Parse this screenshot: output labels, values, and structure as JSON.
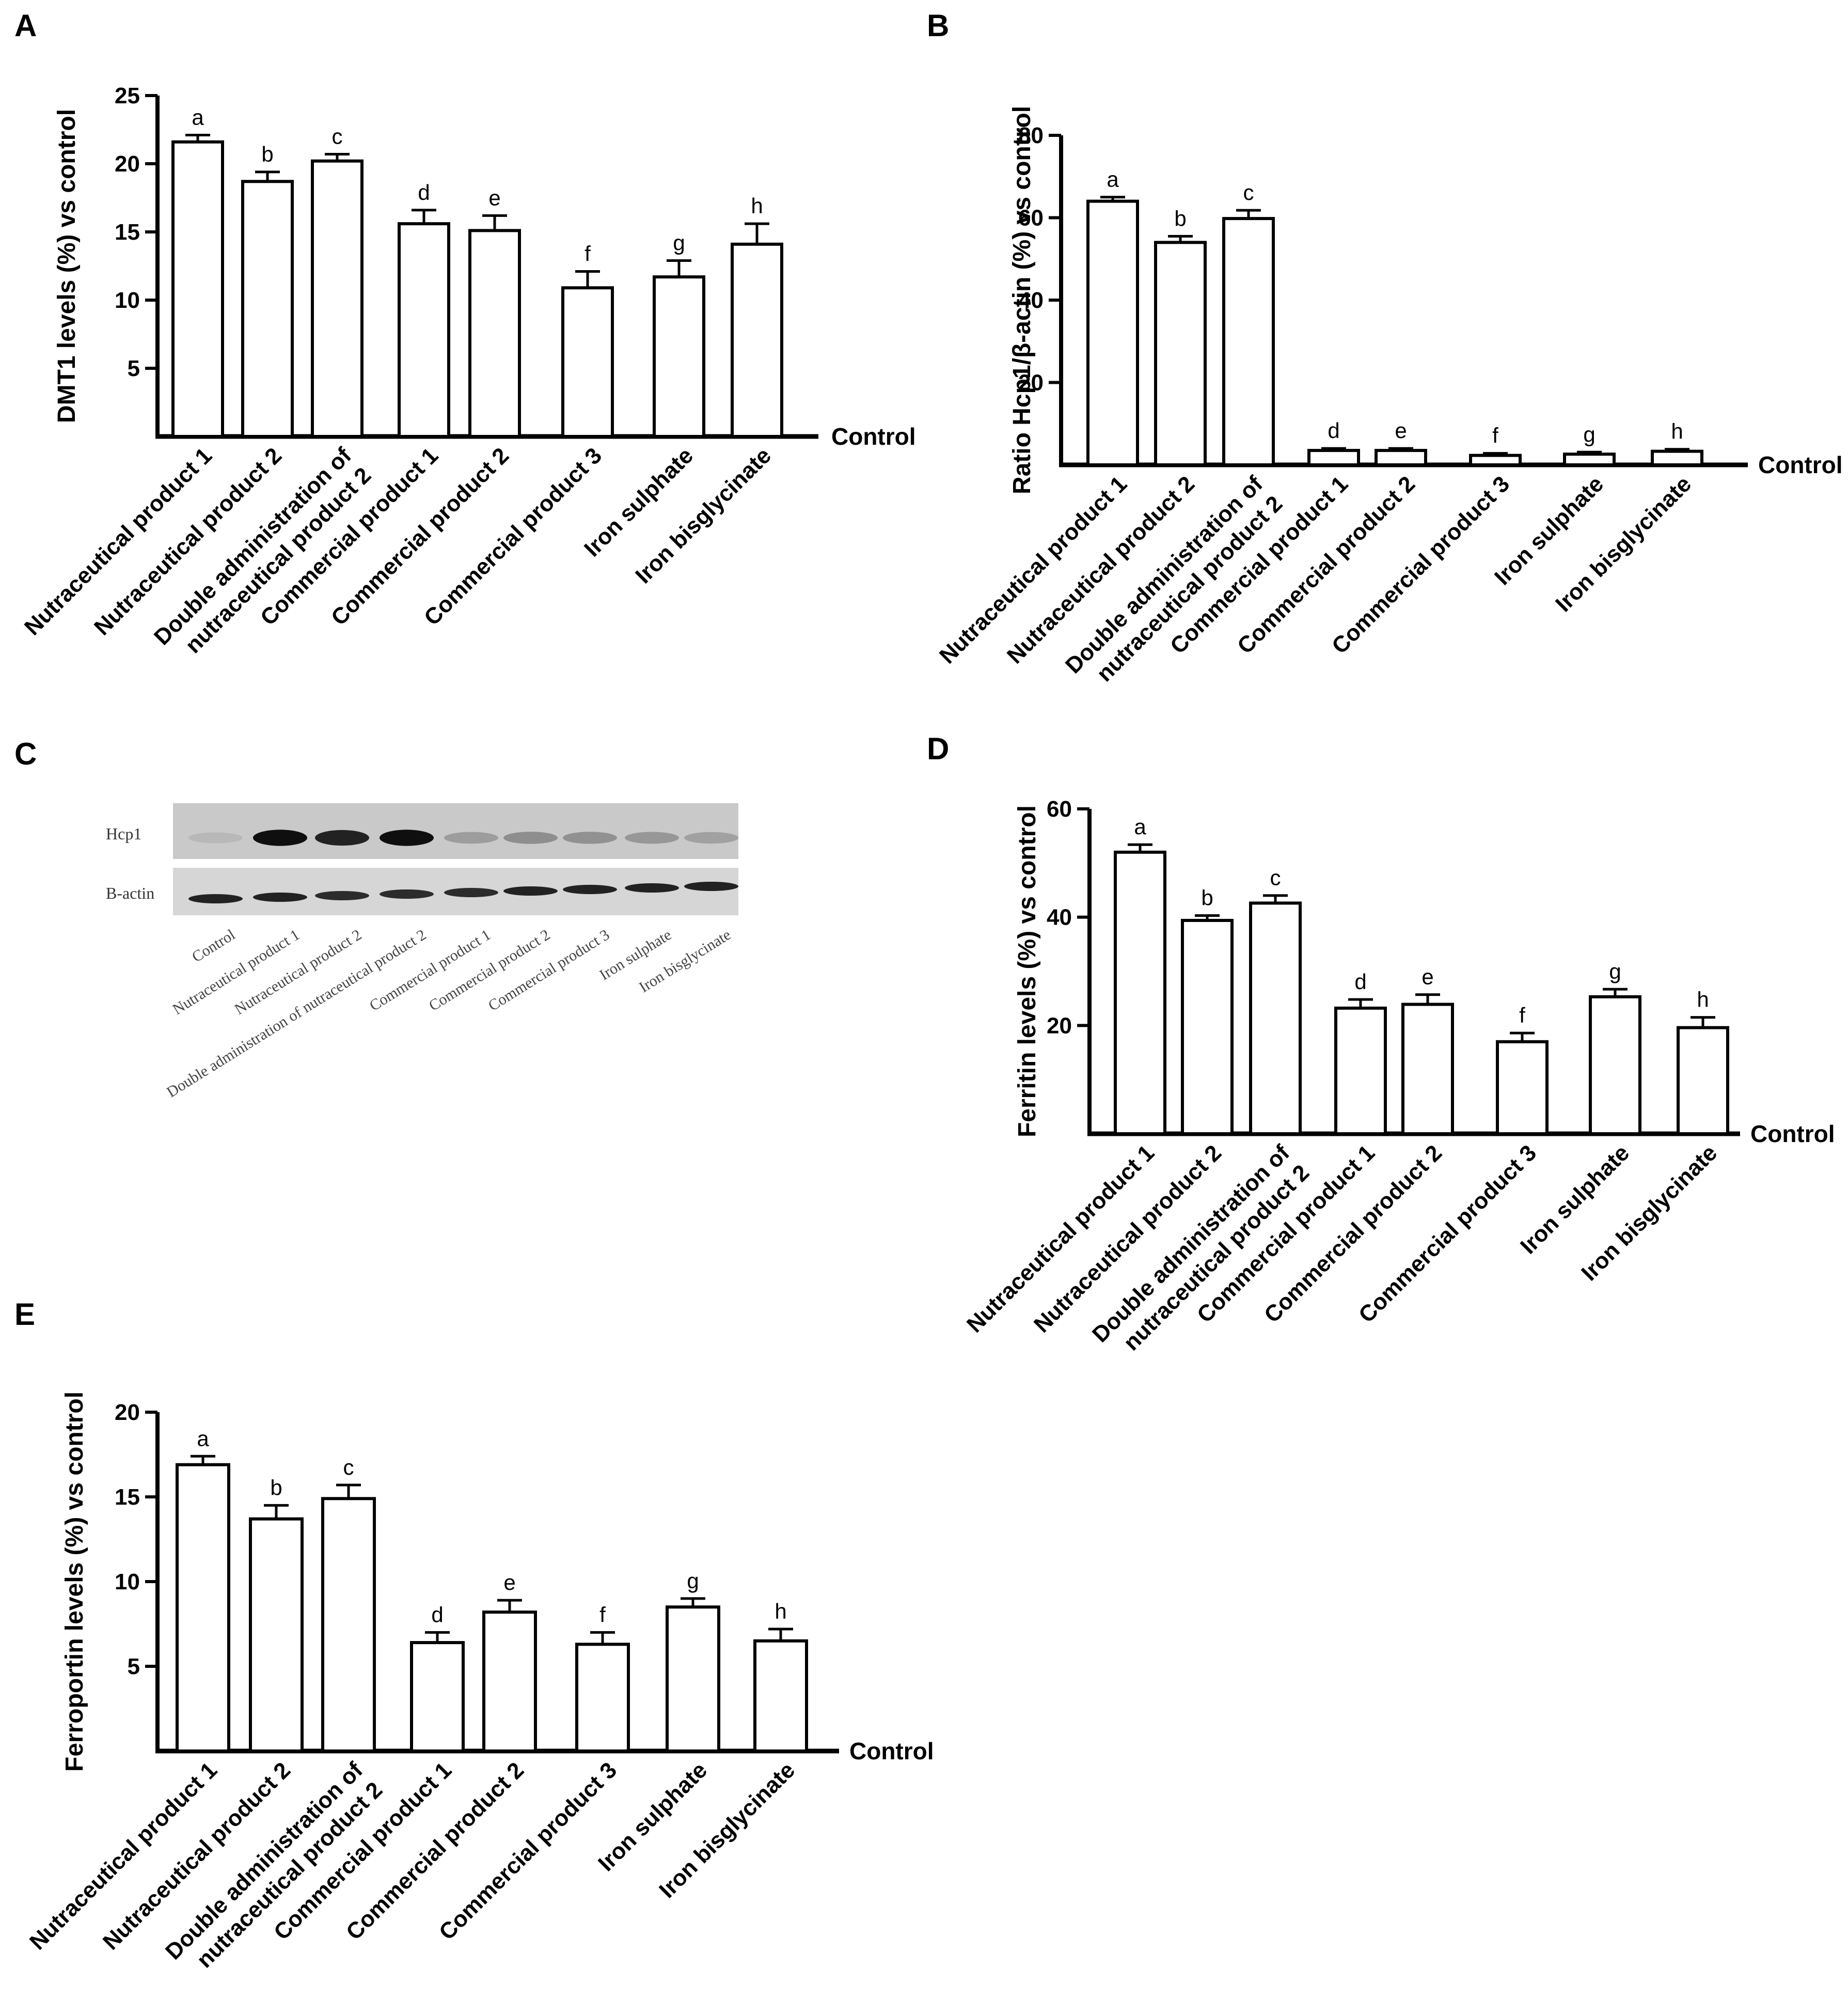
{
  "chart_data": [
    {
      "id": "A",
      "panel_label": "A",
      "type": "bar",
      "ylabel": "DMT1 levels (%) vs control",
      "baseline_label": "Control",
      "ylim": [
        0,
        25
      ],
      "yticks": [
        5,
        10,
        15,
        20,
        25
      ],
      "categories": [
        "Nutraceutical product 1",
        "Nutraceutical product 2",
        "Double administration of|nutraceutical product 2",
        "Commercial product 1",
        "Commercial product 2",
        "Commercial product 3",
        "Iron sulphate",
        "Iron bisglycinate"
      ],
      "values": [
        21.6,
        18.7,
        20.2,
        15.6,
        15.1,
        10.9,
        11.7,
        14.1
      ],
      "errors": [
        0.5,
        0.7,
        0.5,
        1.0,
        1.1,
        1.2,
        1.2,
        1.5
      ],
      "letters": [
        "a",
        "b",
        "c",
        "d",
        "e",
        "f",
        "g",
        "h"
      ]
    },
    {
      "id": "B",
      "panel_label": "B",
      "type": "bar",
      "ylabel": "Ratio Hcp1/β-actin (%) vs control",
      "baseline_label": "Control",
      "ylim": [
        0,
        80
      ],
      "yticks": [
        20,
        40,
        60,
        80
      ],
      "categories": [
        "Nutraceutical product 1",
        "Nutraceutical product 2",
        "Double administration of|nutraceutical product 2",
        "Commercial product 1",
        "Commercial product 2",
        "Commercial product 3",
        "Iron sulphate",
        "Iron bisglycinate"
      ],
      "values": [
        64.0,
        54.0,
        59.8,
        3.5,
        3.5,
        2.3,
        2.6,
        3.3
      ],
      "errors": [
        1.0,
        1.5,
        2.0,
        0.5,
        0.5,
        0.5,
        0.5,
        0.5
      ],
      "letters": [
        "a",
        "b",
        "c",
        "d",
        "e",
        "f",
        "g",
        "h"
      ]
    },
    {
      "id": "D",
      "panel_label": "D",
      "type": "bar",
      "ylabel": "Ferritin levels (%) vs control",
      "baseline_label": "Control",
      "ylim": [
        0,
        60
      ],
      "yticks": [
        20,
        40,
        60
      ],
      "categories": [
        "Nutraceutical product 1",
        "Nutraceutical product 2",
        "Double administration of|nutraceutical product 2",
        "Commercial product 1",
        "Commercial product 2",
        "Commercial product 3",
        "Iron sulphate",
        "Iron bisglycinate"
      ],
      "values": [
        52.0,
        39.4,
        42.6,
        23.2,
        23.9,
        17.0,
        25.3,
        19.6
      ],
      "errors": [
        1.4,
        0.9,
        1.4,
        1.6,
        1.8,
        1.6,
        1.4,
        1.9
      ],
      "letters": [
        "a",
        "b",
        "c",
        "d",
        "e",
        "f",
        "g",
        "h"
      ]
    },
    {
      "id": "E",
      "panel_label": "E",
      "type": "bar",
      "ylabel": "Ferroportin levels (%) vs control",
      "baseline_label": "Control",
      "ylim": [
        0,
        20
      ],
      "yticks": [
        5,
        10,
        15,
        20
      ],
      "categories": [
        "Nutraceutical product 1",
        "Nutraceutical product 2",
        "Double administration of|nutraceutical product 2",
        "Commercial product 1",
        "Commercial product 2",
        "Commercial product 3",
        "Iron sulphate",
        "Iron bisglycinate"
      ],
      "values": [
        16.9,
        13.7,
        14.9,
        6.4,
        8.2,
        6.3,
        8.5,
        6.5
      ],
      "errors": [
        0.5,
        0.8,
        0.8,
        0.6,
        0.7,
        0.7,
        0.5,
        0.7
      ],
      "letters": [
        "a",
        "b",
        "c",
        "d",
        "e",
        "f",
        "g",
        "h"
      ]
    }
  ],
  "western_blot": {
    "panel_label": "C",
    "rows": [
      "Hcp1",
      "B-actin"
    ],
    "lanes": [
      "Control",
      "Nutraceutical product 1",
      "Nutraceutical product 2",
      "Double administration of nutraceutical product 2",
      "Commercial product 1",
      "Commercial product 2",
      "Commercial product 3",
      "Iron sulphate",
      "Iron bisglycinate"
    ],
    "hcp1_band_intensity": [
      0.08,
      0.95,
      0.85,
      0.95,
      0.22,
      0.3,
      0.28,
      0.25,
      0.2
    ],
    "actin_band_intensity": [
      0.85,
      0.85,
      0.8,
      0.8,
      0.8,
      0.85,
      0.85,
      0.85,
      0.85
    ]
  }
}
